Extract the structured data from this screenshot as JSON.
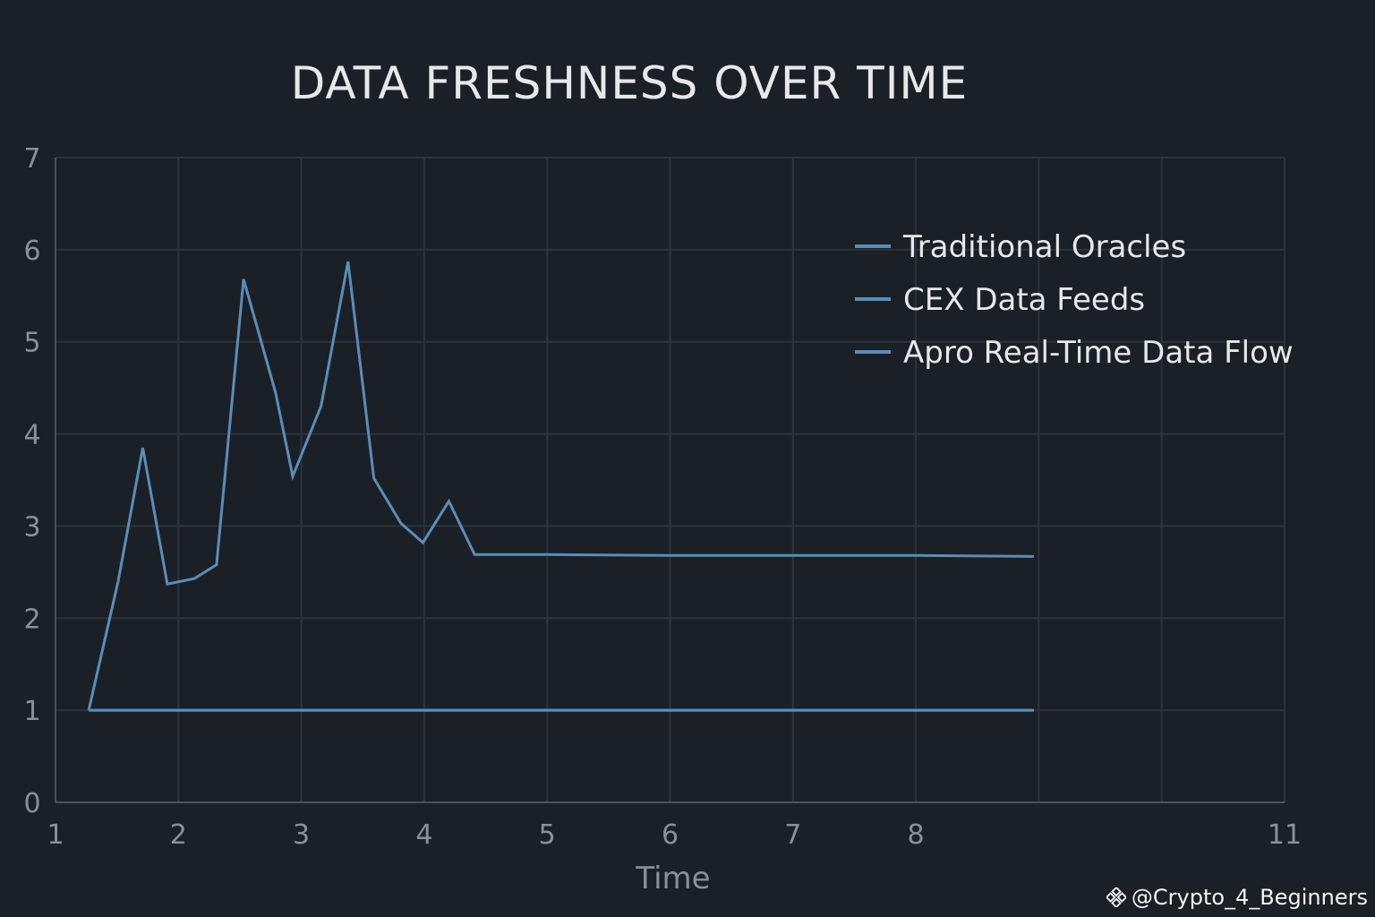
{
  "chart_data": {
    "type": "line",
    "title": "DATA FRESHNESS OVER TIME",
    "xlabel": "Time",
    "ylabel": "",
    "xlim": [
      1,
      11
    ],
    "ylim": [
      0,
      7
    ],
    "x_ticks": [
      1,
      2,
      3,
      4,
      5,
      6,
      7,
      8,
      9,
      10,
      11
    ],
    "x_tick_labels": [
      "1",
      "2",
      "3",
      "4",
      "5",
      "6",
      "7",
      "8",
      "",
      "",
      "11"
    ],
    "y_ticks": [
      0,
      1,
      2,
      3,
      4,
      5,
      6,
      7
    ],
    "grid": true,
    "legend_position": "top-right",
    "line_color": "#5b8db8",
    "legend": [
      "Traditional Oracles",
      "CEX Data Feeds",
      "Apro Real-Time Data Flow"
    ],
    "series": [
      {
        "name": "Traditional Oracles",
        "x": [
          1.27,
          1.51,
          1.71,
          1.91,
          2.13,
          2.31,
          2.53,
          2.79,
          2.93,
          3.16,
          3.38,
          3.59,
          3.81,
          3.99,
          4.2,
          4.41,
          5.0,
          6.0,
          7.0,
          8.0,
          8.96
        ],
        "y": [
          1.0,
          2.4,
          3.85,
          2.37,
          2.43,
          2.58,
          5.68,
          4.45,
          3.54,
          4.3,
          5.87,
          3.52,
          3.03,
          2.82,
          3.27,
          2.69,
          2.69,
          2.68,
          2.68,
          2.68,
          2.67
        ]
      },
      {
        "name": "CEX Data Feeds",
        "x": [
          1.27,
          8.96
        ],
        "y": [
          1.0,
          1.0
        ]
      },
      {
        "name": "Apro Real-Time Data Flow",
        "x": [
          1.27,
          8.96
        ],
        "y": [
          1.0,
          1.0
        ]
      }
    ]
  },
  "watermark": {
    "text": "@Crypto_4_Beginners",
    "icon": "binance-diamond-icon"
  }
}
